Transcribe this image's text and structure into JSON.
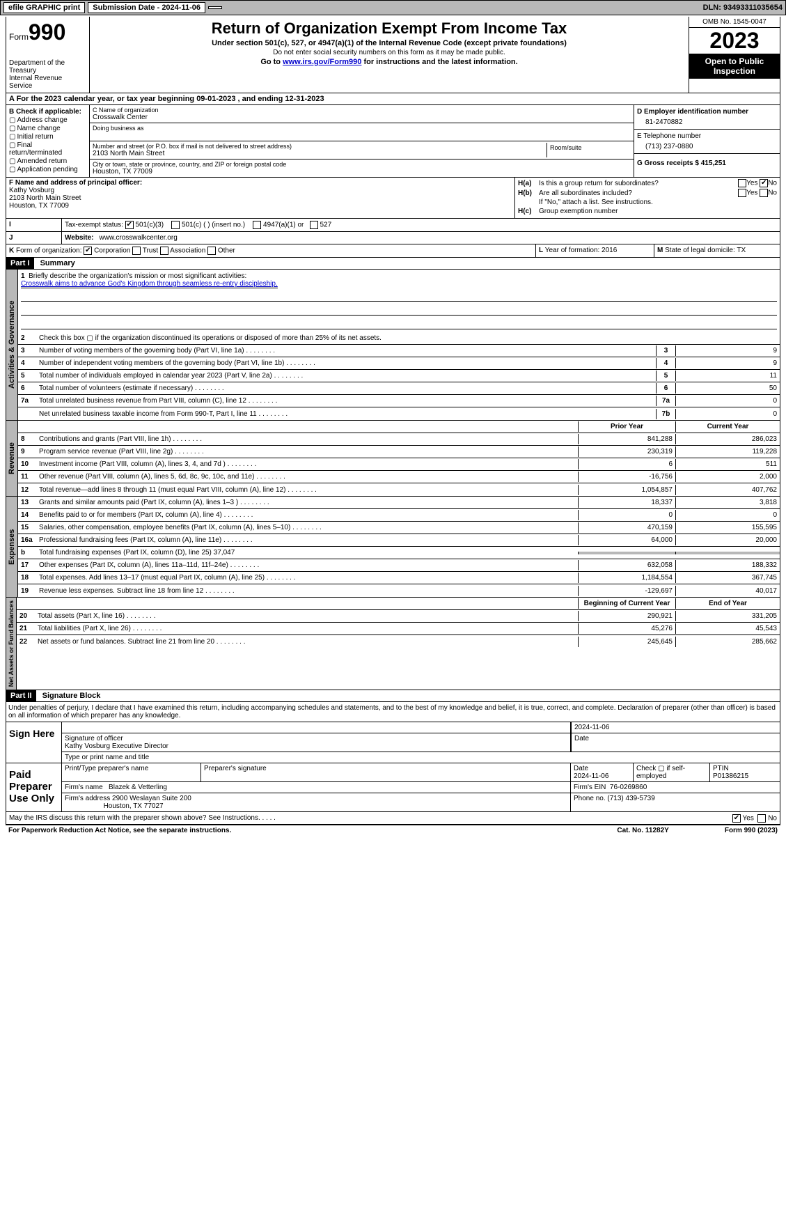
{
  "topbar": {
    "efile": "efile GRAPHIC print",
    "submission_label": "Submission Date - 2024-11-06",
    "dln_label": "DLN: 93493311035654"
  },
  "header": {
    "form_label": "Form",
    "form_number": "990",
    "title": "Return of Organization Exempt From Income Tax",
    "subtitle": "Under section 501(c), 527, or 4947(a)(1) of the Internal Revenue Code (except private foundations)",
    "note": "Do not enter social security numbers on this form as it may be made public.",
    "link_prefix": "Go to ",
    "link_url": "www.irs.gov/Form990",
    "link_suffix": " for instructions and the latest information.",
    "dept": "Department of the Treasury",
    "irs": "Internal Revenue Service",
    "omb": "OMB No. 1545-0047",
    "year": "2023",
    "inspection": "Open to Public Inspection"
  },
  "row_a": "A For the 2023 calendar year, or tax year beginning 09-01-2023   , and ending 12-31-2023",
  "col_b": {
    "label": "B Check if applicable:",
    "opts": [
      "Address change",
      "Name change",
      "Initial return",
      "Final return/terminated",
      "Amended return",
      "Application pending"
    ]
  },
  "col_c": {
    "name_lbl": "C Name of organization",
    "name": "Crosswalk Center",
    "dba_lbl": "Doing business as",
    "addr_lbl": "Number and street (or P.O. box if mail is not delivered to street address)",
    "addr": "2103 North Main Street",
    "room_lbl": "Room/suite",
    "city_lbl": "City or town, state or province, country, and ZIP or foreign postal code",
    "city": "Houston, TX  77009"
  },
  "col_d": {
    "ein_lbl": "D Employer identification number",
    "ein": "81-2470882",
    "tel_lbl": "E Telephone number",
    "tel": "(713) 237-0880",
    "gross_lbl": "G Gross receipts $ 415,251"
  },
  "col_f": {
    "lbl": "F  Name and address of principal officer:",
    "name": "Kathy Vosburg",
    "addr1": "2103 North Main Street",
    "addr2": "Houston, TX  77009"
  },
  "col_h": {
    "ha_lbl": "H(a)",
    "ha_txt": "Is this a group return for subordinates?",
    "hb_lbl": "H(b)",
    "hb_txt": "Are all subordinates included?",
    "hb_note": "If \"No,\" attach a list. See instructions.",
    "hc_lbl": "H(c)",
    "hc_txt": "Group exemption number",
    "yes": "Yes",
    "no": "No"
  },
  "row_i": {
    "lbl": "I",
    "txt": "Tax-exempt status:",
    "opt1": "501(c)(3)",
    "opt2": "501(c) (  ) (insert no.)",
    "opt3": "4947(a)(1) or",
    "opt4": "527"
  },
  "row_j": {
    "lbl": "J",
    "txt": "Website:",
    "val": "www.crosswalkcenter.org"
  },
  "row_k": {
    "lbl": "K",
    "txt": "Form of organization:",
    "opts": [
      "Corporation",
      "Trust",
      "Association",
      "Other"
    ]
  },
  "row_l": {
    "lbl": "L",
    "txt": "Year of formation: 2016"
  },
  "row_m": {
    "lbl": "M",
    "txt": "State of legal domicile: TX"
  },
  "part1": {
    "hdr": "Part I",
    "title": "Summary",
    "vtabs": [
      "Activities & Governance",
      "Revenue",
      "Expenses",
      "Net Assets or Fund Balances"
    ],
    "line1_lbl": "Briefly describe the organization's mission or most significant activities:",
    "line1_txt": "Crosswalk aims to advance God's Kingdom through seamless re-entry discipleship.",
    "line2": "Check this box ▢  if the organization discontinued its operations or disposed of more than 25% of its net assets.",
    "lines_gov": [
      {
        "n": "3",
        "txt": "Number of voting members of the governing body (Part VI, line 1a)",
        "box": "3",
        "val": "9"
      },
      {
        "n": "4",
        "txt": "Number of independent voting members of the governing body (Part VI, line 1b)",
        "box": "4",
        "val": "9"
      },
      {
        "n": "5",
        "txt": "Total number of individuals employed in calendar year 2023 (Part V, line 2a)",
        "box": "5",
        "val": "11"
      },
      {
        "n": "6",
        "txt": "Total number of volunteers (estimate if necessary)",
        "box": "6",
        "val": "50"
      },
      {
        "n": "7a",
        "txt": "Total unrelated business revenue from Part VIII, column (C), line 12",
        "box": "7a",
        "val": "0"
      },
      {
        "n": "",
        "txt": "Net unrelated business taxable income from Form 990-T, Part I, line 11",
        "box": "7b",
        "val": "0"
      }
    ],
    "col_prior": "Prior Year",
    "col_current": "Current Year",
    "lines_rev": [
      {
        "n": "8",
        "txt": "Contributions and grants (Part VIII, line 1h)",
        "p": "841,288",
        "c": "286,023"
      },
      {
        "n": "9",
        "txt": "Program service revenue (Part VIII, line 2g)",
        "p": "230,319",
        "c": "119,228"
      },
      {
        "n": "10",
        "txt": "Investment income (Part VIII, column (A), lines 3, 4, and 7d )",
        "p": "6",
        "c": "511"
      },
      {
        "n": "11",
        "txt": "Other revenue (Part VIII, column (A), lines 5, 6d, 8c, 9c, 10c, and 11e)",
        "p": "-16,756",
        "c": "2,000"
      },
      {
        "n": "12",
        "txt": "Total revenue—add lines 8 through 11 (must equal Part VIII, column (A), line 12)",
        "p": "1,054,857",
        "c": "407,762"
      }
    ],
    "lines_exp": [
      {
        "n": "13",
        "txt": "Grants and similar amounts paid (Part IX, column (A), lines 1–3 )",
        "p": "18,337",
        "c": "3,818"
      },
      {
        "n": "14",
        "txt": "Benefits paid to or for members (Part IX, column (A), line 4)",
        "p": "0",
        "c": "0"
      },
      {
        "n": "15",
        "txt": "Salaries, other compensation, employee benefits (Part IX, column (A), lines 5–10)",
        "p": "470,159",
        "c": "155,595"
      },
      {
        "n": "16a",
        "txt": "Professional fundraising fees (Part IX, column (A), line 11e)",
        "p": "64,000",
        "c": "20,000"
      },
      {
        "n": "b",
        "txt": "Total fundraising expenses (Part IX, column (D), line 25) 37,047",
        "p": "",
        "c": "",
        "gray": true
      },
      {
        "n": "17",
        "txt": "Other expenses (Part IX, column (A), lines 11a–11d, 11f–24e)",
        "p": "632,058",
        "c": "188,332"
      },
      {
        "n": "18",
        "txt": "Total expenses. Add lines 13–17 (must equal Part IX, column (A), line 25)",
        "p": "1,184,554",
        "c": "367,745"
      },
      {
        "n": "19",
        "txt": "Revenue less expenses. Subtract line 18 from line 12",
        "p": "-129,697",
        "c": "40,017"
      }
    ],
    "col_boy": "Beginning of Current Year",
    "col_eoy": "End of Year",
    "lines_net": [
      {
        "n": "20",
        "txt": "Total assets (Part X, line 16)",
        "p": "290,921",
        "c": "331,205"
      },
      {
        "n": "21",
        "txt": "Total liabilities (Part X, line 26)",
        "p": "45,276",
        "c": "45,543"
      },
      {
        "n": "22",
        "txt": "Net assets or fund balances. Subtract line 21 from line 20",
        "p": "245,645",
        "c": "285,662"
      }
    ]
  },
  "part2": {
    "hdr": "Part II",
    "title": "Signature Block",
    "decl": "Under penalties of perjury, I declare that I have examined this return, including accompanying schedules and statements, and to the best of my knowledge and belief, it is true, correct, and complete. Declaration of preparer (other than officer) is based on all information of which preparer has any knowledge.",
    "sign_here": "Sign Here",
    "sig_date": "2024-11-06",
    "sig_officer_lbl": "Signature of officer",
    "sig_officer": "Kathy Vosburg  Executive Director",
    "sig_type_lbl": "Type or print name and title",
    "date_lbl": "Date",
    "paid": "Paid Preparer Use Only",
    "prep_name_lbl": "Print/Type preparer's name",
    "prep_sig_lbl": "Preparer's signature",
    "prep_date_lbl": "Date",
    "prep_date": "2024-11-06",
    "prep_self_lbl": "Check ▢ if self-employed",
    "ptin_lbl": "PTIN",
    "ptin": "P01386215",
    "firm_name_lbl": "Firm's name",
    "firm_name": "Blazek & Vetterling",
    "firm_ein_lbl": "Firm's EIN",
    "firm_ein": "76-0269860",
    "firm_addr_lbl": "Firm's address",
    "firm_addr1": "2900 Weslayan Suite 200",
    "firm_addr2": "Houston, TX  77027",
    "firm_phone_lbl": "Phone no.",
    "firm_phone": "(713) 439-5739",
    "discuss": "May the IRS discuss this return with the preparer shown above? See Instructions."
  },
  "footer": {
    "left": "For Paperwork Reduction Act Notice, see the separate instructions.",
    "mid": "Cat. No. 11282Y",
    "right": "Form 990 (2023)"
  }
}
